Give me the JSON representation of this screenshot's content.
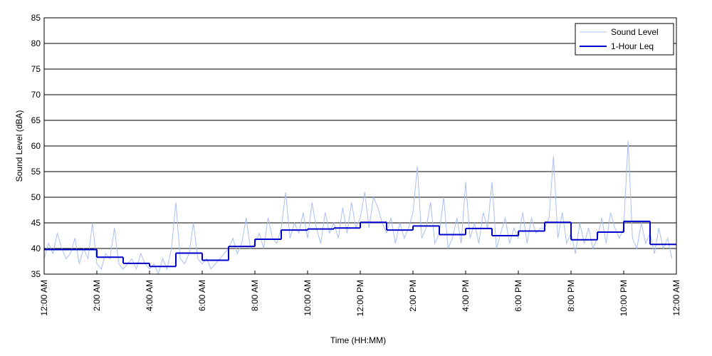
{
  "chart_data": {
    "type": "line",
    "xlabel": "Time (HH:MM)",
    "ylabel": "Sound Level (dBA)",
    "xlim": [
      0,
      1440
    ],
    "ylim": [
      35,
      85
    ],
    "xticks": [
      {
        "value": 0,
        "label": "12:00 AM"
      },
      {
        "value": 120,
        "label": "2:00 AM"
      },
      {
        "value": 240,
        "label": "4:00 AM"
      },
      {
        "value": 360,
        "label": "6:00 AM"
      },
      {
        "value": 480,
        "label": "8:00 AM"
      },
      {
        "value": 600,
        "label": "10:00 AM"
      },
      {
        "value": 720,
        "label": "12:00 PM"
      },
      {
        "value": 840,
        "label": "2:00 PM"
      },
      {
        "value": 960,
        "label": "4:00 PM"
      },
      {
        "value": 1080,
        "label": "6:00 PM"
      },
      {
        "value": 1200,
        "label": "8:00 PM"
      },
      {
        "value": 1320,
        "label": "10:00 PM"
      },
      {
        "value": 1440,
        "label": "12:00 AM"
      }
    ],
    "yticks": [
      35,
      40,
      45,
      50,
      55,
      60,
      65,
      70,
      75,
      80,
      85
    ],
    "grid": true,
    "legend": "upper right",
    "series": [
      {
        "name": "Sound Level",
        "color": "#a9bff2",
        "style": "line",
        "x": [
          0,
          10,
          20,
          30,
          40,
          50,
          60,
          70,
          80,
          90,
          100,
          110,
          120,
          130,
          140,
          150,
          160,
          170,
          180,
          190,
          200,
          210,
          220,
          230,
          240,
          250,
          260,
          270,
          280,
          290,
          300,
          310,
          320,
          330,
          340,
          350,
          360,
          370,
          380,
          390,
          400,
          410,
          420,
          430,
          440,
          450,
          460,
          470,
          480,
          490,
          500,
          510,
          520,
          530,
          540,
          550,
          560,
          570,
          580,
          590,
          600,
          610,
          620,
          630,
          640,
          650,
          660,
          670,
          680,
          690,
          700,
          710,
          720,
          730,
          740,
          750,
          760,
          770,
          780,
          790,
          800,
          810,
          820,
          830,
          840,
          850,
          860,
          870,
          880,
          890,
          900,
          910,
          920,
          930,
          940,
          950,
          960,
          970,
          980,
          990,
          1000,
          1010,
          1020,
          1030,
          1040,
          1050,
          1060,
          1070,
          1080,
          1090,
          1100,
          1110,
          1120,
          1130,
          1140,
          1150,
          1160,
          1170,
          1180,
          1190,
          1200,
          1210,
          1220,
          1230,
          1240,
          1250,
          1260,
          1270,
          1280,
          1290,
          1300,
          1310,
          1320,
          1330,
          1340,
          1350,
          1360,
          1370,
          1380,
          1390,
          1400,
          1410,
          1420,
          1430
        ],
        "values": [
          38,
          41,
          39,
          43,
          40,
          38,
          39,
          42,
          37,
          40,
          38,
          45,
          37,
          36,
          39,
          38,
          44,
          37,
          36,
          37,
          38,
          36,
          39,
          37,
          36,
          37,
          35,
          38,
          36,
          40,
          49,
          38,
          37,
          39,
          45,
          38,
          37,
          38,
          36,
          37,
          38,
          39,
          40,
          42,
          39,
          41,
          46,
          40,
          41,
          43,
          40,
          46,
          42,
          41,
          44,
          51,
          42,
          45,
          43,
          47,
          42,
          49,
          44,
          41,
          47,
          43,
          45,
          42,
          48,
          43,
          49,
          44,
          46,
          51,
          44,
          50,
          48,
          45,
          43,
          46,
          41,
          45,
          42,
          44,
          47,
          56,
          42,
          44,
          49,
          41,
          43,
          50,
          40,
          42,
          46,
          41,
          53,
          42,
          45,
          41,
          47,
          44,
          53,
          40,
          43,
          46,
          41,
          44,
          42,
          47,
          41,
          46,
          43,
          44,
          44,
          46,
          58,
          42,
          47,
          41,
          43,
          39,
          45,
          41,
          44,
          40,
          42,
          46,
          41,
          47,
          44,
          42,
          44,
          61,
          42,
          40,
          45,
          41,
          43,
          39,
          44,
          40,
          42,
          38
        ]
      },
      {
        "name": "1-Hour Leq",
        "color": "#0000cc",
        "style": "step",
        "x": [
          0,
          60,
          120,
          180,
          240,
          300,
          360,
          420,
          480,
          540,
          600,
          660,
          720,
          780,
          840,
          900,
          960,
          1020,
          1080,
          1140,
          1200,
          1260,
          1320,
          1380
        ],
        "values": [
          39.8,
          39.8,
          38.3,
          37.1,
          36.5,
          39.1,
          37.7,
          40.4,
          41.8,
          43.6,
          43.8,
          44.0,
          45.1,
          43.6,
          44.4,
          42.7,
          43.9,
          42.5,
          43.4,
          45.1,
          41.7,
          43.2,
          45.3,
          40.8
        ]
      }
    ]
  }
}
